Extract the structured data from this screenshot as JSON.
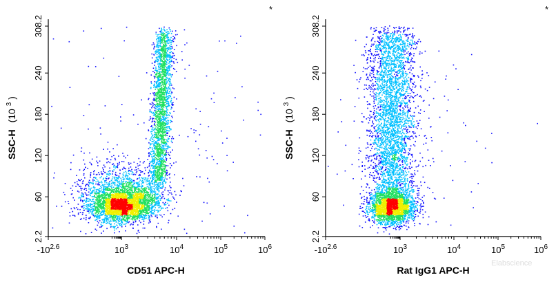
{
  "chart_data": [
    {
      "type": "scatter",
      "subtype": "flow-cytometry-density-plot",
      "xlabel": "CD51 APC-H",
      "ylabel": "SSC-H",
      "ylabel_unit_base": "(10",
      "ylabel_unit_exp": "3",
      "ylabel_unit_close": ")",
      "x_scale": "biexponential",
      "x_ticks": [
        {
          "base": "-10",
          "exp": "2.6",
          "value": -398
        },
        {
          "base": "10",
          "exp": "3",
          "value": 1000
        },
        {
          "base": "10",
          "exp": "4",
          "value": 10000
        },
        {
          "base": "10",
          "exp": "5",
          "value": 100000
        },
        {
          "base": "10",
          "exp": "6",
          "value": 1000000
        }
      ],
      "y_ticks": [
        "2.2",
        "60",
        "120",
        "180",
        "240",
        "308.2"
      ],
      "ylim": [
        2.2,
        308.2
      ],
      "corner_mark": "*",
      "populations": [
        {
          "name": "",
          "x_center": 800,
          "y_center": 48,
          "relative_density": 1.0
        },
        {
          "name": "",
          "x_center": 5500,
          "y_center": 190,
          "relative_density": 0.7
        }
      ]
    },
    {
      "type": "scatter",
      "subtype": "flow-cytometry-density-plot",
      "xlabel": "Rat IgG1 APC-H",
      "ylabel": "SSC-H",
      "ylabel_unit_base": "(10",
      "ylabel_unit_exp": "3",
      "ylabel_unit_close": ")",
      "x_scale": "biexponential",
      "x_ticks": [
        {
          "base": "-10",
          "exp": "2.6",
          "value": -398
        },
        {
          "base": "10",
          "exp": "3",
          "value": 1000
        },
        {
          "base": "10",
          "exp": "4",
          "value": 10000
        },
        {
          "base": "10",
          "exp": "5",
          "value": 100000
        },
        {
          "base": "10",
          "exp": "6",
          "value": 1000000
        }
      ],
      "y_ticks": [
        "2.2",
        "60",
        "120",
        "180",
        "240",
        "308.2"
      ],
      "ylim": [
        2.2,
        308.2
      ],
      "corner_mark": "*",
      "populations": [
        {
          "name": "",
          "x_center": 250,
          "y_center": 48,
          "relative_density": 1.0
        },
        {
          "name": "",
          "x_center": 250,
          "y_center": 190,
          "relative_density": 0.6
        }
      ]
    }
  ],
  "watermark": "Elabscience",
  "colors": {
    "density_low": "#1010ff",
    "density_mid_low": "#00c0ff",
    "density_mid": "#20e060",
    "density_mid_high": "#f0f000",
    "density_high": "#ff0000"
  }
}
